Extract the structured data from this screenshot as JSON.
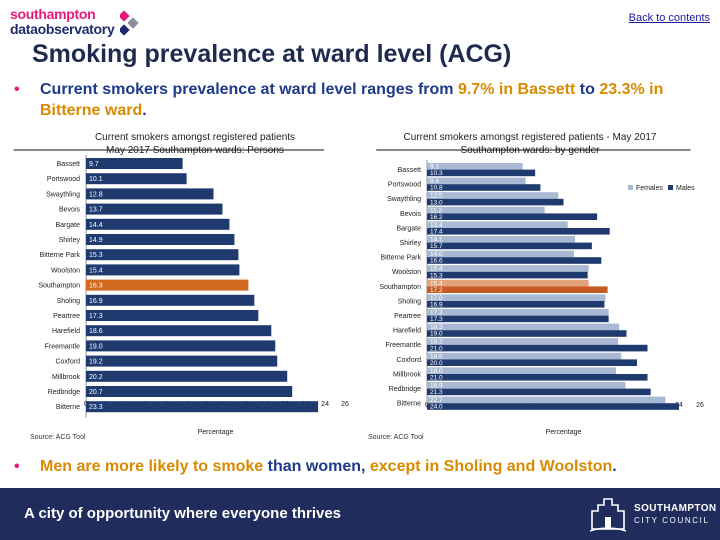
{
  "header": {
    "logo_line1": "southampton",
    "logo_line2": "dataobservatory",
    "back_link": "Back to contents"
  },
  "title": "Smoking prevalence at ward level (ACG)",
  "bullet1": {
    "pre": "Current smokers prevalence at ward level ranges from ",
    "hl1": "9.7% in Bassett",
    "mid": " to ",
    "hl2": "23.3% in Bitterne ward",
    "post": "."
  },
  "bullet2": {
    "hl1": "Men are more likely to smoke",
    "mid": " than women, ",
    "hl2": "except in Sholing and Woolston",
    "post": "."
  },
  "chart_titles": {
    "left_line1": "Current smokers amongst registered patients",
    "left_line2": "May 2017 Southampton wards: Persons",
    "right_line1": "Current smokers amongst registered patients - May 2017",
    "right_line2": "Southampton wards: by gender"
  },
  "sources": {
    "left": "Source: ACG Tool",
    "right": "Source: ACG Tool"
  },
  "footer": {
    "tagline": "A city of opportunity where everyone thrives",
    "org_line1": "SOUTHAMPTON",
    "org_line2": "CITY COUNCIL"
  },
  "chart_data": [
    {
      "type": "bar",
      "orientation": "horizontal",
      "title": "Current smokers amongst registered patients May 2017 Southampton wards: Persons",
      "xlabel": "Percentage",
      "xlim": [
        0,
        26
      ],
      "xticks": [
        0,
        2,
        4,
        6,
        8,
        10,
        12,
        14,
        16,
        18,
        20,
        22,
        24,
        26
      ],
      "categories": [
        "Bassett",
        "Portswood",
        "Swaythling",
        "Bevois",
        "Bargate",
        "Shirley",
        "Bitterne Park",
        "Woolston",
        "Southampton",
        "Sholing",
        "Peartree",
        "Harefield",
        "Freemantle",
        "Coxford",
        "Millbrook",
        "Redbridge",
        "Bitterne"
      ],
      "values": [
        9.7,
        10.1,
        12.8,
        13.7,
        14.4,
        14.9,
        15.3,
        15.4,
        16.3,
        16.9,
        17.3,
        18.6,
        19.0,
        19.2,
        20.2,
        20.7,
        23.3
      ],
      "value_labels": [
        "9.7",
        "10.1",
        "12.8",
        "13.7",
        "14.4",
        "14.9",
        "15.3",
        "15.4",
        "16.3",
        "16.9",
        "17.3",
        "18.6",
        "19.0",
        "19.2",
        "20.2",
        "20.7",
        "23.3"
      ],
      "highlight_category": "Southampton",
      "colors": {
        "bar": "#1f3a6e",
        "highlight": "#d2691e"
      }
    },
    {
      "type": "bar",
      "orientation": "horizontal",
      "title": "Current smokers amongst registered patients - May 2017 Southampton wards: by gender",
      "xlabel": "Percentage",
      "xlim": [
        0,
        26
      ],
      "xticks": [
        0,
        2,
        4,
        6,
        8,
        10,
        12,
        14,
        16,
        18,
        20,
        22,
        24,
        26
      ],
      "legend_position": "top-right",
      "categories": [
        "Bassett",
        "Portswood",
        "Swaythling",
        "Bevois",
        "Bargate",
        "Shirley",
        "Bitterne Park",
        "Woolston",
        "Southampton",
        "Sholing",
        "Peartree",
        "Harefield",
        "Freemantle",
        "Coxford",
        "Millbrook",
        "Redbridge",
        "Bitterne"
      ],
      "series": [
        {
          "name": "Females",
          "values": [
            9.1,
            9.4,
            12.5,
            11.2,
            13.4,
            14.1,
            14.0,
            15.4,
            15.4,
            17.0,
            17.3,
            18.3,
            18.2,
            18.5,
            18.0,
            18.9,
            22.7
          ],
          "value_labels": [
            "9.1",
            "9.4",
            "12.5",
            "11.2",
            "13.4",
            "14.1",
            "14.0",
            "15.4",
            "15.4",
            "17.0",
            "17.3",
            "18.3",
            "18.2",
            "18.5",
            "18.0",
            "18.9",
            "22.7"
          ],
          "color": "#a9b9d4"
        },
        {
          "name": "Males",
          "values": [
            10.3,
            10.8,
            13.0,
            16.2,
            17.4,
            15.7,
            16.6,
            15.3,
            17.2,
            16.9,
            17.3,
            19.0,
            21.0,
            20.0,
            21.0,
            21.3,
            24.0
          ],
          "value_labels": [
            "10.3",
            "10.8",
            "13.0",
            "16.2",
            "17.4",
            "15.7",
            "16.6",
            "15.3",
            "17.2",
            "16.9",
            "17.3",
            "19.0",
            "21.0",
            "20.0",
            "21.0",
            "21.3",
            "24.0"
          ],
          "color": "#1f3a6e"
        }
      ],
      "highlight_category": "Southampton",
      "colors": {
        "highlight_female": "#e3a27a",
        "highlight_male": "#c65a22"
      }
    }
  ]
}
